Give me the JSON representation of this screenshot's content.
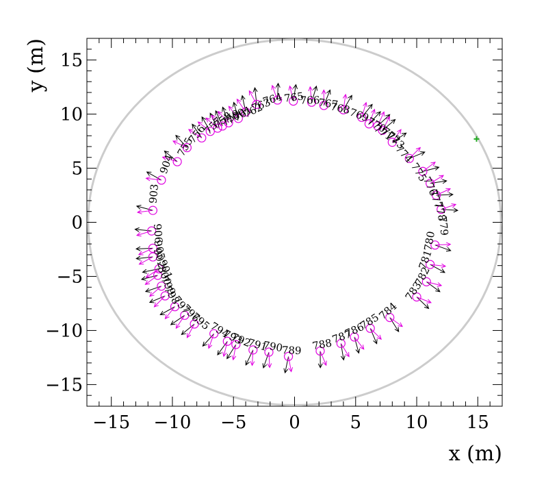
{
  "chart_data": {
    "type": "scatter",
    "xlabel": "x (m)",
    "ylabel": "y (m)",
    "xlim": [
      -17,
      17
    ],
    "ylim": [
      -17,
      17
    ],
    "xticks": [
      "−15",
      "−10",
      "−5",
      "0",
      "5",
      "10",
      "15"
    ],
    "xtick_values": [
      -15,
      -10,
      -5,
      0,
      5,
      10,
      15
    ],
    "yticks": [
      "−15",
      "−10",
      "−5",
      "0",
      "5",
      "10",
      "15"
    ],
    "ytick_values": [
      -15,
      -10,
      -5,
      0,
      5,
      10,
      15
    ],
    "boundary_circle_radius": 16.9,
    "marker_plus": {
      "x": 14.9,
      "y": 7.7
    },
    "stations": [
      {
        "id": "755",
        "x": -9.6,
        "y": 5.6,
        "label": "755"
      },
      {
        "id": "756",
        "x": -8.8,
        "y": 6.9,
        "label": "756"
      },
      {
        "id": "757",
        "x": -7.6,
        "y": 7.8,
        "label": "757"
      },
      {
        "id": "758",
        "x": -6.9,
        "y": 8.4,
        "label": "758"
      },
      {
        "id": "759",
        "x": -6.3,
        "y": 8.7,
        "label": "759"
      },
      {
        "id": "760",
        "x": -5.9,
        "y": 8.9,
        "label": "760"
      },
      {
        "id": "761",
        "x": -5.4,
        "y": 9.2,
        "label": "761"
      },
      {
        "id": "762",
        "x": -4.6,
        "y": 9.6,
        "label": "762"
      },
      {
        "id": "763",
        "x": -4.0,
        "y": 10.2,
        "label": "763"
      },
      {
        "id": "764",
        "x": -3.1,
        "y": 10.9,
        "label": "764"
      },
      {
        "id": "765",
        "x": -1.4,
        "y": 11.3,
        "label": "765"
      },
      {
        "id": "766",
        "x": -0.1,
        "y": 11.2,
        "label": "766"
      },
      {
        "id": "767",
        "x": 1.4,
        "y": 11.1,
        "label": "767"
      },
      {
        "id": "768",
        "x": 2.4,
        "y": 10.8,
        "label": "768"
      },
      {
        "id": "769",
        "x": 4.0,
        "y": 10.4,
        "label": "769"
      },
      {
        "id": "770",
        "x": 5.5,
        "y": 9.7,
        "label": "770"
      },
      {
        "id": "771",
        "x": 6.1,
        "y": 9.1,
        "label": "771"
      },
      {
        "id": "772",
        "x": 6.8,
        "y": 8.9,
        "label": "772"
      },
      {
        "id": "773",
        "x": 7.2,
        "y": 8.5,
        "label": "773"
      },
      {
        "id": "774",
        "x": 8.0,
        "y": 7.4,
        "label": "774"
      },
      {
        "id": "775",
        "x": 9.4,
        "y": 5.9,
        "label": "775"
      },
      {
        "id": "776",
        "x": 10.5,
        "y": 4.7,
        "label": "776"
      },
      {
        "id": "777",
        "x": 11.1,
        "y": 3.6,
        "label": "777"
      },
      {
        "id": "778",
        "x": 11.6,
        "y": 2.5,
        "label": "778"
      },
      {
        "id": "779",
        "x": 12.0,
        "y": 1.2,
        "label": "779"
      },
      {
        "id": "780",
        "x": 11.5,
        "y": -2.1,
        "label": "780"
      },
      {
        "id": "781",
        "x": 11.1,
        "y": -3.9,
        "label": "781"
      },
      {
        "id": "782",
        "x": 10.8,
        "y": -5.5,
        "label": "782"
      },
      {
        "id": "783",
        "x": 10.0,
        "y": -6.9,
        "label": "783"
      },
      {
        "id": "784",
        "x": 7.8,
        "y": -8.8,
        "label": "784"
      },
      {
        "id": "785",
        "x": 6.2,
        "y": -9.8,
        "label": "785"
      },
      {
        "id": "786",
        "x": 4.9,
        "y": -10.6,
        "label": "786"
      },
      {
        "id": "787",
        "x": 3.8,
        "y": -11.2,
        "label": "787"
      },
      {
        "id": "788",
        "x": 2.1,
        "y": -11.9,
        "label": "788"
      },
      {
        "id": "789",
        "x": -0.5,
        "y": -12.4,
        "label": "789"
      },
      {
        "id": "790",
        "x": -2.1,
        "y": -12.0,
        "label": "790"
      },
      {
        "id": "791",
        "x": -3.4,
        "y": -11.8,
        "label": "791"
      },
      {
        "id": "792",
        "x": -4.8,
        "y": -11.3,
        "label": "792"
      },
      {
        "id": "793",
        "x": -5.5,
        "y": -11.0,
        "label": "793"
      },
      {
        "id": "794",
        "x": -6.6,
        "y": -10.3,
        "label": "794"
      },
      {
        "id": "795",
        "x": -8.2,
        "y": -9.4,
        "label": "795"
      },
      {
        "id": "796",
        "x": -9.0,
        "y": -8.6,
        "label": "796"
      },
      {
        "id": "797",
        "x": -9.8,
        "y": -7.8,
        "label": "797"
      },
      {
        "id": "798",
        "x": -10.6,
        "y": -6.8,
        "label": "798"
      },
      {
        "id": "799",
        "x": -10.9,
        "y": -5.9,
        "label": "799"
      },
      {
        "id": "800",
        "x": -11.2,
        "y": -4.9,
        "label": "800"
      },
      {
        "id": "901",
        "x": -11.1,
        "y": -4.3,
        "label": "901"
      },
      {
        "id": "902",
        "x": -11.6,
        "y": -3.2,
        "label": "902"
      },
      {
        "id": "903",
        "x": -11.6,
        "y": 1.1,
        "label": "903"
      },
      {
        "id": "904",
        "x": -10.9,
        "y": 3.9,
        "label": "904"
      },
      {
        "id": "905",
        "x": -11.6,
        "y": -2.4,
        "label": "905"
      },
      {
        "id": "906",
        "x": -11.7,
        "y": -0.8,
        "label": "906"
      }
    ]
  }
}
